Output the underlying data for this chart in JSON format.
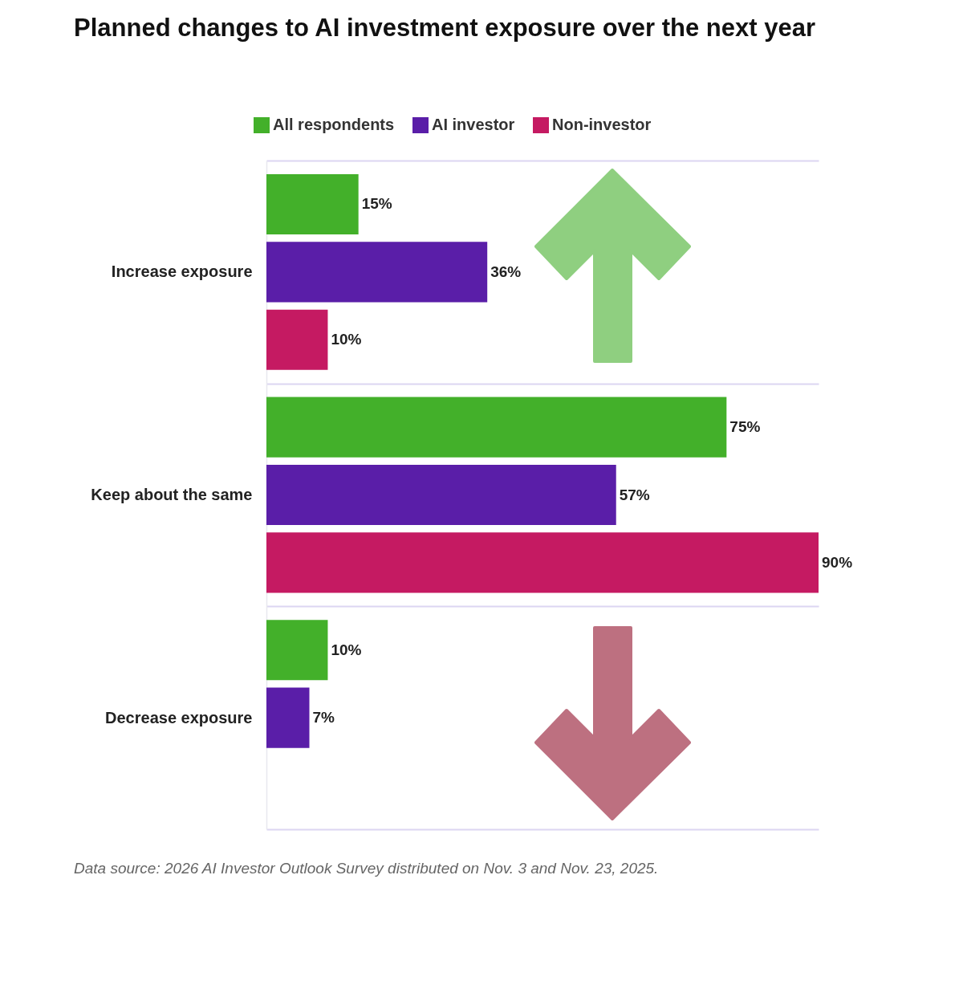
{
  "chart_data": {
    "type": "bar",
    "orientation": "horizontal",
    "title": "Planned changes to AI investment exposure over the next year",
    "categories": [
      "Increase exposure",
      "Keep about the same",
      "Decrease exposure"
    ],
    "series": [
      {
        "name": "All respondents",
        "color": "#43b02a",
        "values": [
          15,
          75,
          10
        ],
        "value_labels": [
          "15%",
          "75%",
          "10%"
        ]
      },
      {
        "name": "AI investor",
        "color": "#5a1ea8",
        "values": [
          36,
          57,
          7
        ],
        "value_labels": [
          "36%",
          "57%",
          "7%"
        ]
      },
      {
        "name": "Non-investor",
        "color": "#c51a62",
        "values": [
          10,
          90,
          null
        ],
        "value_labels": [
          "10%",
          "90%",
          null
        ]
      }
    ],
    "legend": "top",
    "grid": "y",
    "tick_labels": "y",
    "annotations": [
      "Data source: 2026 AI Investor Outlook Survey distributed on Nov. 3 and Nov. 23, 2025."
    ]
  }
}
